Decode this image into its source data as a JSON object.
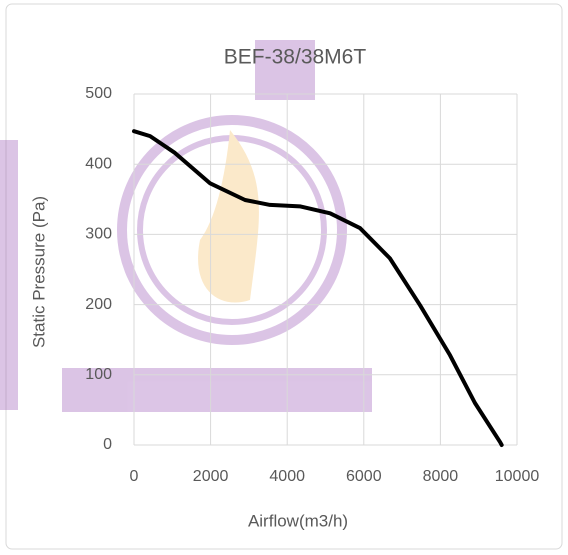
{
  "chart_data": {
    "type": "line",
    "title": "BEF-38/38M6T",
    "x_label": "Airflow(m3/h)",
    "y_label": "Static Pressure (Pa)",
    "x": [
      0,
      420,
      1070,
      1980,
      2900,
      3550,
      4330,
      5120,
      5900,
      6680,
      7470,
      8250,
      8900,
      9560,
      9600
    ],
    "series": [
      {
        "name": "BEF-38/38M6T",
        "color": "#000000",
        "values": [
          447,
          440,
          416,
          373,
          349,
          342,
          340,
          330,
          309,
          266,
          199,
          128,
          60,
          4,
          0
        ]
      }
    ],
    "xlim": [
      0,
      10000
    ],
    "xticks": [
      0,
      2000,
      4000,
      6000,
      8000,
      10000
    ],
    "ylim": [
      0,
      500
    ],
    "yticks": [
      0,
      100,
      200,
      300,
      400,
      500
    ],
    "grid": true
  }
}
